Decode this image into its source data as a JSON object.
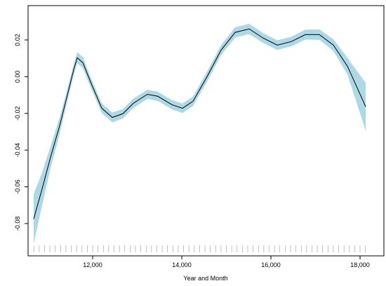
{
  "chart_data": {
    "type": "line",
    "xlabel": "Year and Month",
    "x": [
      10677,
      10866,
      11055,
      11260,
      11417,
      11575,
      11654,
      11780,
      11969,
      12205,
      12441,
      12677,
      12913,
      13228,
      13465,
      13780,
      14016,
      14252,
      14567,
      14882,
      15197,
      15512,
      15827,
      16142,
      16457,
      16772,
      17087,
      17402,
      17717,
      18127
    ],
    "values": [
      -0.0775,
      -0.0611,
      -0.0439,
      -0.0267,
      -0.0115,
      0.0038,
      0.0103,
      0.0076,
      -0.0038,
      -0.0172,
      -0.0222,
      -0.0202,
      -0.0145,
      -0.0096,
      -0.0107,
      -0.0153,
      -0.0172,
      -0.0134,
      0.0,
      0.0145,
      0.0241,
      0.026,
      0.021,
      0.0172,
      0.0191,
      0.0229,
      0.0229,
      0.0172,
      0.0057,
      -0.0164
    ],
    "band": {
      "upper": [
        -0.064,
        -0.0521,
        -0.0379,
        -0.0222,
        -0.008,
        0.0068,
        0.0133,
        0.0106,
        -0.001,
        -0.0145,
        -0.0195,
        -0.0176,
        -0.012,
        -0.0071,
        -0.0082,
        -0.0128,
        -0.0146,
        -0.0108,
        0.0027,
        0.0172,
        0.0269,
        0.0288,
        0.0237,
        0.0198,
        0.0217,
        0.0256,
        0.0257,
        0.0204,
        0.0102,
        -0.0034
      ],
      "lower": [
        -0.091,
        -0.0701,
        -0.0499,
        -0.0312,
        -0.015,
        0.0008,
        0.0073,
        0.0046,
        -0.0066,
        -0.0199,
        -0.0249,
        -0.0228,
        -0.017,
        -0.0121,
        -0.0132,
        -0.0178,
        -0.0198,
        -0.016,
        -0.0027,
        0.0118,
        0.0213,
        0.0232,
        0.0183,
        0.0146,
        0.0165,
        0.0202,
        0.0201,
        0.014,
        0.0012,
        -0.0294
      ]
    },
    "rug": [
      10680,
      10800,
      10920,
      11040,
      11160,
      11280,
      11400,
      11520,
      11640,
      11760,
      11880,
      12000,
      12120,
      12240,
      12360,
      12480,
      12600,
      12720,
      12840,
      12960,
      13080,
      13200,
      13320,
      13440,
      13560,
      13680,
      13800,
      13920,
      14040,
      14160,
      14280,
      14400,
      14520,
      14640,
      14760,
      14880,
      15000,
      15120,
      15240,
      15360,
      15480,
      15600,
      15720,
      15840,
      15960,
      16080,
      16200,
      16320,
      16440,
      16560,
      16680,
      16800,
      16920,
      17040,
      17160,
      17280,
      17400,
      17520,
      17640,
      17760,
      17880,
      18000,
      18120
    ],
    "color": "#000000",
    "band_color": "#add8e6",
    "rug_color": "#999999",
    "xlim": [
      10551,
      18535
    ],
    "ylim": [
      -0.0976,
      0.0387
    ],
    "xticks": [
      {
        "value": 12000,
        "label": "12,000"
      },
      {
        "value": 14000,
        "label": "14,000"
      },
      {
        "value": 16000,
        "label": "16,000"
      },
      {
        "value": 18000,
        "label": "18,000"
      }
    ],
    "yticks": [
      -0.08,
      -0.06,
      -0.04,
      -0.02,
      {
        "value": 0,
        "label": "0.00"
      },
      0.02
    ]
  }
}
